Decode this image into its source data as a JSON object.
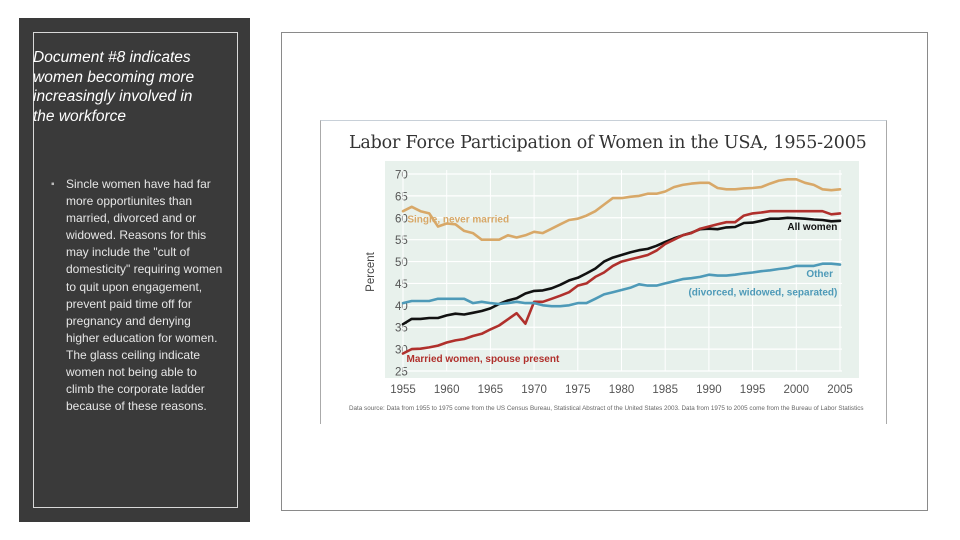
{
  "sidebar": {
    "title": "Document #8 indicates women becoming more increasingly involved in the workforce",
    "bullet": "Sincle women have had far more opportiunites than married, divorced and or widowed. Reasons for this may include the \"cult of domesticity\" requiring women to quit upon engagement, prevent paid time off for pregnancy and denying higher education for women. The glass ceiling indicate women not being able to climb the corporate ladder because of these reasons.",
    "bullet_symbol": "▪"
  },
  "colors": {
    "panel": "#3a3a3a",
    "plot_bg": "#e8f1ec",
    "single": "#d8a868",
    "all": "#111111",
    "married": "#b0302c",
    "other": "#4e9ab8"
  },
  "chart_data": {
    "type": "line",
    "title": "Labor Force Participation of Women in the USA, 1955-2005",
    "ylabel": "Percent",
    "xlabel": "",
    "xlim": [
      1955,
      2005
    ],
    "ylim": [
      25,
      70
    ],
    "x_ticks": [
      "1955",
      "1960",
      "1965",
      "1970",
      "1975",
      "1980",
      "1985",
      "1990",
      "1995",
      "2000",
      "2005"
    ],
    "y_ticks": [
      "25",
      "30",
      "35",
      "40",
      "45",
      "50",
      "55",
      "60",
      "65",
      "70"
    ],
    "grid": true,
    "series": [
      {
        "name": "Single, never married",
        "color": "#d8a868",
        "points": [
          [
            1955,
            61.5
          ],
          [
            1956,
            62.5
          ],
          [
            1957,
            61.5
          ],
          [
            1958,
            61
          ],
          [
            1959,
            58
          ],
          [
            1960,
            58.7
          ],
          [
            1961,
            58.5
          ],
          [
            1962,
            57
          ],
          [
            1963,
            56.5
          ],
          [
            1964,
            55
          ],
          [
            1965,
            55
          ],
          [
            1966,
            55
          ],
          [
            1967,
            56
          ],
          [
            1968,
            55.5
          ],
          [
            1969,
            56
          ],
          [
            1970,
            56.8
          ],
          [
            1971,
            56.5
          ],
          [
            1972,
            57.5
          ],
          [
            1973,
            58.5
          ],
          [
            1974,
            59.5
          ],
          [
            1975,
            59.8
          ],
          [
            1976,
            60.5
          ],
          [
            1977,
            61.5
          ],
          [
            1978,
            63
          ],
          [
            1979,
            64.5
          ],
          [
            1980,
            64.5
          ],
          [
            1981,
            64.8
          ],
          [
            1982,
            65
          ],
          [
            1983,
            65.5
          ],
          [
            1984,
            65.5
          ],
          [
            1985,
            66
          ],
          [
            1986,
            67
          ],
          [
            1987,
            67.5
          ],
          [
            1988,
            67.8
          ],
          [
            1989,
            68
          ],
          [
            1990,
            68
          ],
          [
            1991,
            66.8
          ],
          [
            1992,
            66.5
          ],
          [
            1993,
            66.5
          ],
          [
            1994,
            66.7
          ],
          [
            1995,
            66.8
          ],
          [
            1996,
            67
          ],
          [
            1997,
            67.8
          ],
          [
            1998,
            68.5
          ],
          [
            1999,
            68.8
          ],
          [
            2000,
            68.8
          ],
          [
            2001,
            68
          ],
          [
            2002,
            67.5
          ],
          [
            2003,
            66.5
          ],
          [
            2004,
            66.3
          ],
          [
            2005,
            66.5
          ]
        ]
      },
      {
        "name": "All women",
        "color": "#111111",
        "points": [
          [
            1955,
            35.7
          ],
          [
            1956,
            36.9
          ],
          [
            1957,
            36.9
          ],
          [
            1958,
            37.1
          ],
          [
            1959,
            37.1
          ],
          [
            1960,
            37.7
          ],
          [
            1961,
            38.1
          ],
          [
            1962,
            37.9
          ],
          [
            1963,
            38.3
          ],
          [
            1964,
            38.7
          ],
          [
            1965,
            39.3
          ],
          [
            1966,
            40.3
          ],
          [
            1967,
            41.1
          ],
          [
            1968,
            41.6
          ],
          [
            1969,
            42.7
          ],
          [
            1970,
            43.3
          ],
          [
            1971,
            43.4
          ],
          [
            1972,
            43.9
          ],
          [
            1973,
            44.7
          ],
          [
            1974,
            45.7
          ],
          [
            1975,
            46.3
          ],
          [
            1976,
            47.3
          ],
          [
            1977,
            48.4
          ],
          [
            1978,
            50
          ],
          [
            1979,
            50.9
          ],
          [
            1980,
            51.5
          ],
          [
            1981,
            52.1
          ],
          [
            1982,
            52.6
          ],
          [
            1983,
            52.9
          ],
          [
            1984,
            53.6
          ],
          [
            1985,
            54.5
          ],
          [
            1986,
            55.3
          ],
          [
            1987,
            56
          ],
          [
            1988,
            56.6
          ],
          [
            1989,
            57.4
          ],
          [
            1990,
            57.5
          ],
          [
            1991,
            57.4
          ],
          [
            1992,
            57.8
          ],
          [
            1993,
            57.9
          ],
          [
            1994,
            58.8
          ],
          [
            1995,
            58.9
          ],
          [
            1996,
            59.3
          ],
          [
            1997,
            59.8
          ],
          [
            1998,
            59.8
          ],
          [
            1999,
            60
          ],
          [
            2000,
            59.9
          ],
          [
            2001,
            59.8
          ],
          [
            2002,
            59.6
          ],
          [
            2003,
            59.5
          ],
          [
            2004,
            59.2
          ],
          [
            2005,
            59.3
          ]
        ]
      },
      {
        "name": "Married women, spouse present",
        "color": "#b0302c",
        "points": [
          [
            1955,
            29
          ],
          [
            1956,
            30
          ],
          [
            1957,
            30.1
          ],
          [
            1958,
            30.4
          ],
          [
            1959,
            30.8
          ],
          [
            1960,
            31.5
          ],
          [
            1961,
            32
          ],
          [
            1962,
            32.3
          ],
          [
            1963,
            33
          ],
          [
            1964,
            33.5
          ],
          [
            1965,
            34.5
          ],
          [
            1966,
            35.4
          ],
          [
            1967,
            36.8
          ],
          [
            1968,
            38.2
          ],
          [
            1969,
            35.8
          ],
          [
            1970,
            40.8
          ],
          [
            1971,
            40.8
          ],
          [
            1972,
            41.5
          ],
          [
            1973,
            42.2
          ],
          [
            1974,
            43
          ],
          [
            1975,
            44.5
          ],
          [
            1976,
            45
          ],
          [
            1977,
            46.5
          ],
          [
            1978,
            47.5
          ],
          [
            1979,
            49
          ],
          [
            1980,
            50
          ],
          [
            1981,
            50.5
          ],
          [
            1982,
            51
          ],
          [
            1983,
            51.5
          ],
          [
            1984,
            52.5
          ],
          [
            1985,
            54
          ],
          [
            1986,
            55
          ],
          [
            1987,
            56
          ],
          [
            1988,
            56.5
          ],
          [
            1989,
            57.5
          ],
          [
            1990,
            58
          ],
          [
            1991,
            58.5
          ],
          [
            1992,
            59
          ],
          [
            1993,
            59
          ],
          [
            1994,
            60.5
          ],
          [
            1995,
            61
          ],
          [
            1996,
            61.2
          ],
          [
            1997,
            61.5
          ],
          [
            1998,
            61.5
          ],
          [
            1999,
            61.5
          ],
          [
            2000,
            61.5
          ],
          [
            2001,
            61.5
          ],
          [
            2002,
            61.5
          ],
          [
            2003,
            61.5
          ],
          [
            2004,
            60.8
          ],
          [
            2005,
            61
          ]
        ]
      },
      {
        "name": "Other (divorced, widowed, separated)",
        "color": "#4e9ab8",
        "points": [
          [
            1955,
            40.5
          ],
          [
            1956,
            41
          ],
          [
            1957,
            41
          ],
          [
            1958,
            41
          ],
          [
            1959,
            41.5
          ],
          [
            1960,
            41.5
          ],
          [
            1961,
            41.5
          ],
          [
            1962,
            41.5
          ],
          [
            1963,
            40.5
          ],
          [
            1964,
            40.8
          ],
          [
            1965,
            40.5
          ],
          [
            1966,
            40.3
          ],
          [
            1967,
            40.5
          ],
          [
            1968,
            40.8
          ],
          [
            1969,
            40.5
          ],
          [
            1970,
            40.5
          ],
          [
            1971,
            40
          ],
          [
            1972,
            39.8
          ],
          [
            1973,
            39.8
          ],
          [
            1974,
            40
          ],
          [
            1975,
            40.5
          ],
          [
            1976,
            40.5
          ],
          [
            1977,
            41.5
          ],
          [
            1978,
            42.5
          ],
          [
            1979,
            43
          ],
          [
            1980,
            43.5
          ],
          [
            1981,
            44
          ],
          [
            1982,
            44.8
          ],
          [
            1983,
            44.5
          ],
          [
            1984,
            44.5
          ],
          [
            1985,
            45
          ],
          [
            1986,
            45.5
          ],
          [
            1987,
            46
          ],
          [
            1988,
            46.2
          ],
          [
            1989,
            46.5
          ],
          [
            1990,
            47
          ],
          [
            1991,
            46.8
          ],
          [
            1992,
            46.8
          ],
          [
            1993,
            47
          ],
          [
            1994,
            47.3
          ],
          [
            1995,
            47.5
          ],
          [
            1996,
            47.8
          ],
          [
            1997,
            48
          ],
          [
            1998,
            48.3
          ],
          [
            1999,
            48.5
          ],
          [
            2000,
            49
          ],
          [
            2001,
            49
          ],
          [
            2002,
            49
          ],
          [
            2003,
            49.5
          ],
          [
            2004,
            49.5
          ],
          [
            2005,
            49.3
          ]
        ]
      }
    ],
    "annotations": [
      {
        "text": "Single, never married",
        "x": 1955.5,
        "y": 58.9,
        "color": "#d8a868",
        "anchor": "start"
      },
      {
        "text": "All women",
        "x": 2004.7,
        "y": 57.2,
        "color": "#111111",
        "anchor": "end"
      },
      {
        "text": "Other",
        "x": 2004.2,
        "y": 46.5,
        "color": "#4e9ab8",
        "anchor": "end"
      },
      {
        "text": "(divorced, widowed, separated)",
        "x": 2004.7,
        "y": 42.2,
        "color": "#4e9ab8",
        "anchor": "end"
      },
      {
        "text": "Married women, spouse present",
        "x": 1955.4,
        "y": 27.1,
        "color": "#b0302c",
        "anchor": "start"
      }
    ],
    "source": "Data source: Data from 1955 to 1975 come from the US Census Bureau, Statistical Abstract of the United States 2003. Data from 1975 to 2005 come from the Bureau of Labor Statistics"
  }
}
